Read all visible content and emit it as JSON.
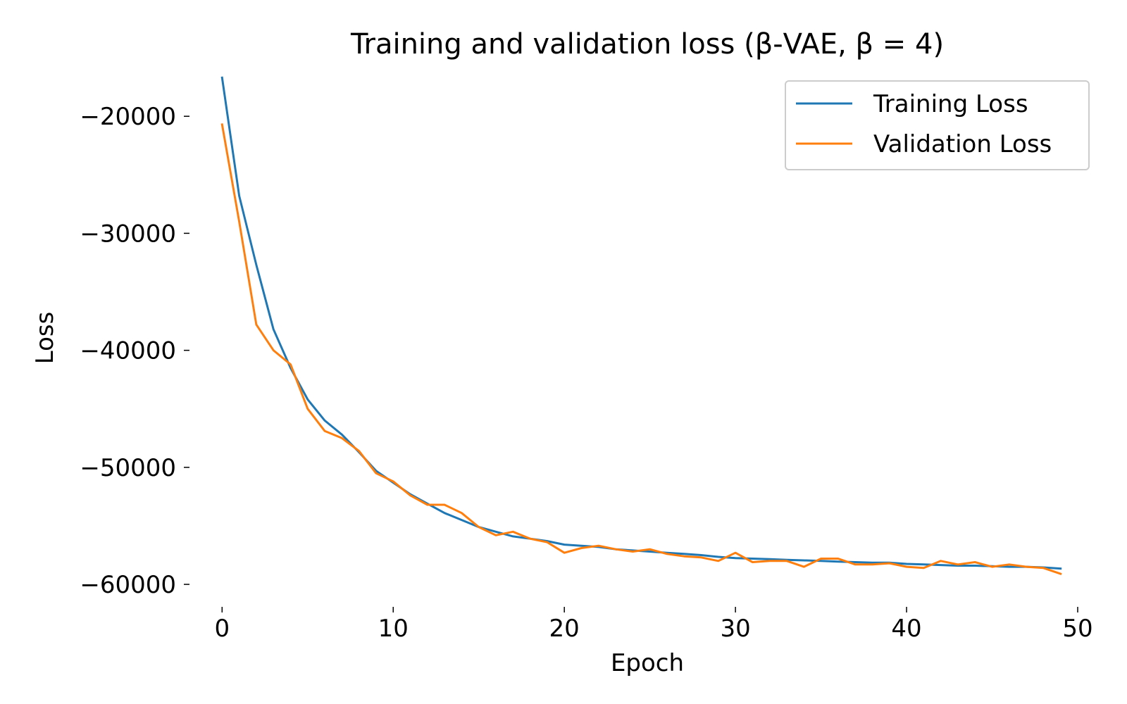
{
  "chart_data": {
    "type": "line",
    "title": "Training and validation loss (β-VAE, β = 4)",
    "xlabel": "Epoch",
    "ylabel": "Loss",
    "xlim": [
      -1,
      50
    ],
    "ylim": [
      -61500,
      -16500
    ],
    "xticks": [
      0,
      10,
      20,
      30,
      40,
      50
    ],
    "yticks": [
      -20000,
      -30000,
      -40000,
      -50000,
      -60000
    ],
    "xtick_labels": [
      "0",
      "10",
      "20",
      "30",
      "40",
      "50"
    ],
    "ytick_labels": [
      "−20000",
      "−30000",
      "−40000",
      "−50000",
      "−60000"
    ],
    "grid": false,
    "legend": "top-right",
    "x": [
      0,
      1,
      2,
      3,
      4,
      5,
      6,
      7,
      8,
      9,
      10,
      11,
      12,
      13,
      14,
      15,
      16,
      17,
      18,
      19,
      20,
      21,
      22,
      23,
      24,
      25,
      26,
      27,
      28,
      29,
      30,
      31,
      32,
      33,
      34,
      35,
      36,
      37,
      38,
      39,
      40,
      41,
      42,
      43,
      44,
      45,
      46,
      47,
      48,
      49
    ],
    "series": [
      {
        "name": "Training Loss",
        "color": "#1f77b4",
        "values": [
          -16700,
          -26800,
          -32700,
          -38200,
          -41500,
          -44200,
          -46000,
          -47200,
          -48700,
          -50300,
          -51300,
          -52300,
          -53100,
          -53900,
          -54500,
          -55100,
          -55500,
          -55900,
          -56100,
          -56300,
          -56600,
          -56700,
          -56800,
          -57000,
          -57100,
          -57200,
          -57300,
          -57400,
          -57500,
          -57650,
          -57750,
          -57800,
          -57850,
          -57900,
          -57950,
          -58000,
          -58050,
          -58100,
          -58150,
          -58150,
          -58250,
          -58300,
          -58350,
          -58400,
          -58400,
          -58450,
          -58500,
          -58500,
          -58550,
          -58650
        ]
      },
      {
        "name": "Validation Loss",
        "color": "#ff7f0e",
        "values": [
          -20700,
          -29000,
          -37800,
          -40000,
          -41200,
          -45000,
          -46900,
          -47500,
          -48600,
          -50500,
          -51200,
          -52400,
          -53200,
          -53200,
          -53900,
          -55100,
          -55800,
          -55500,
          -56100,
          -56400,
          -57300,
          -56900,
          -56700,
          -57000,
          -57200,
          -57000,
          -57400,
          -57600,
          -57700,
          -58000,
          -57300,
          -58100,
          -58000,
          -58000,
          -58500,
          -57800,
          -57800,
          -58300,
          -58300,
          -58200,
          -58500,
          -58600,
          -58000,
          -58300,
          -58100,
          -58500,
          -58300,
          -58500,
          -58600,
          -59100
        ]
      }
    ]
  }
}
